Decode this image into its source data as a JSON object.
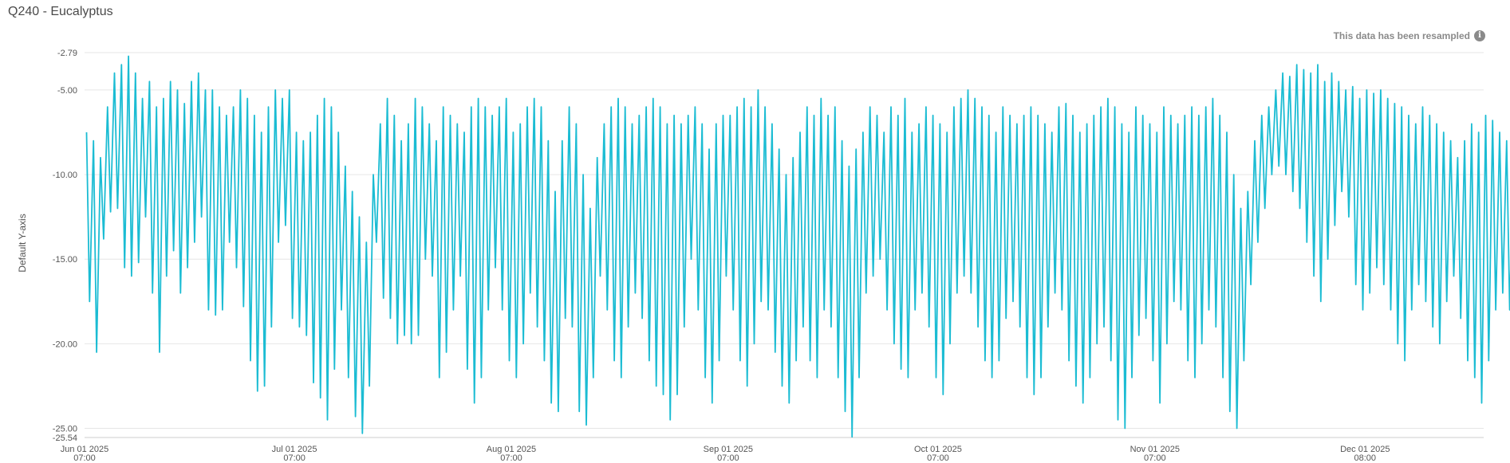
{
  "header": {
    "title": "Q240 - Eucalyptus",
    "notice": "This data has been resampled",
    "notice_icon": "info-icon"
  },
  "colors": {
    "line": "#1bbcd3",
    "grid": "#e6e6e6",
    "axis": "#cccccc"
  },
  "chart_data": {
    "type": "line",
    "title": "Q240 - Eucalyptus",
    "ylabel": "Default Y-axis",
    "xlabel": "",
    "ylim": [
      -25.54,
      -2.79
    ],
    "xlim": [
      "2025-06-01T07:00",
      "2025-12-18T07:00"
    ],
    "y_ticks": [
      "-2.79",
      "-5.00",
      "-10.00",
      "-15.00",
      "-20.00",
      "-25.00",
      "-25.54"
    ],
    "x_ticks": [
      {
        "date": "2025-06-01",
        "label1": "Jun 01 2025",
        "label2": "07:00"
      },
      {
        "date": "2025-07-01",
        "label1": "Jul 01 2025",
        "label2": "07:00"
      },
      {
        "date": "2025-08-01",
        "label1": "Aug 01 2025",
        "label2": "07:00"
      },
      {
        "date": "2025-09-01",
        "label1": "Sep 01 2025",
        "label2": "07:00"
      },
      {
        "date": "2025-10-01",
        "label1": "Oct 01 2025",
        "label2": "07:00"
      },
      {
        "date": "2025-11-01",
        "label1": "Nov 01 2025",
        "label2": "07:00"
      },
      {
        "date": "2025-12-01",
        "label1": "Dec 01 2025",
        "label2": "08:00"
      }
    ],
    "grid": true,
    "legend": "none",
    "series": [
      {
        "daily_min": [
          -17.5,
          -20.5,
          -13.8,
          -12.2,
          -12.0,
          -15.5,
          -16.0,
          -15.2,
          -12.5,
          -17.0,
          -20.5,
          -16.0,
          -14.5,
          -17.0,
          -15.5,
          -14.0,
          -12.5,
          -18.0,
          -18.3,
          -18.0,
          -14.0,
          -15.5,
          -17.8,
          -21.0,
          -22.8,
          -22.5,
          -19.0,
          -14.0,
          -13.0,
          -18.5,
          -19.0,
          -19.5,
          -22.3,
          -23.2,
          -24.5,
          -21.5,
          -18.0,
          -22.0,
          -24.3,
          -25.3,
          -22.5,
          -14.0,
          -17.3,
          -18.5,
          -20.0,
          -19.5,
          -20.0,
          -19.5,
          -15.0,
          -16.0,
          -22.0,
          -20.5,
          -18.0,
          -16.0,
          -21.5,
          -23.5,
          -22.0,
          -18.0,
          -15.5,
          -18.0,
          -21.0,
          -22.0,
          -20.0,
          -17.0,
          -19.0,
          -21.0,
          -23.5,
          -24.0,
          -18.5,
          -19.0,
          -24.0,
          -24.8,
          -22.0,
          -16.0,
          -18.0,
          -21.0,
          -22.0,
          -19.0,
          -17.0,
          -18.5,
          -21.0,
          -22.5,
          -23.0,
          -24.5,
          -23.0,
          -19.0,
          -15.0,
          -18.0,
          -22.0,
          -23.5,
          -21.0,
          -16.0,
          -18.0,
          -21.0,
          -22.5,
          -20.0,
          -17.5,
          -18.0,
          -20.5,
          -22.5,
          -23.5,
          -21.0,
          -19.0,
          -21.0,
          -22.0,
          -18.0,
          -19.0,
          -22.0,
          -24.0,
          -25.5,
          -22.0,
          -17.0,
          -16.0,
          -15.0,
          -18.0,
          -20.0,
          -21.5,
          -22.0,
          -18.0,
          -17.0,
          -19.0,
          -22.0,
          -23.0,
          -20.0,
          -17.0,
          -16.0,
          -17.0,
          -19.0,
          -21.0,
          -22.0,
          -21.0,
          -18.5,
          -17.5,
          -19.0,
          -22.0,
          -23.0,
          -22.0,
          -19.0,
          -17.0,
          -18.0,
          -21.0,
          -22.5,
          -23.5,
          -22.0,
          -20.0,
          -19.0,
          -21.0,
          -24.5,
          -25.0,
          -22.0,
          -19.5,
          -18.5,
          -21.0,
          -23.5,
          -20.0,
          -17.5,
          -18.0,
          -21.0,
          -22.0,
          -20.0,
          -18.0,
          -19.0,
          -22.0,
          -24.0,
          -25.0,
          -21.0,
          -16.5,
          -14.0,
          -12.0,
          -10.0,
          -9.5,
          -10.0,
          -11.0,
          -12.0,
          -14.0,
          -16.0,
          -17.5,
          -15.0,
          -13.0,
          -11.0,
          -12.5,
          -16.5,
          -18.0,
          -17.0,
          -15.5,
          -16.5,
          -18.0,
          -20.0,
          -21.0,
          -18.0,
          -16.5,
          -17.5,
          -19.0,
          -20.0,
          -17.5,
          -16.0,
          -18.5,
          -21.0,
          -22.0,
          -23.5,
          -21.0,
          -18.0,
          -17.0,
          -18.0,
          -19.0,
          -21.8
        ],
        "daily_max": [
          -7.5,
          -8.0,
          -9.0,
          -6.0,
          -4.0,
          -3.5,
          -3.0,
          -4.0,
          -5.5,
          -4.5,
          -6.0,
          -5.5,
          -4.5,
          -5.0,
          -5.8,
          -4.5,
          -4.0,
          -5.0,
          -5.0,
          -6.0,
          -6.5,
          -6.0,
          -5.0,
          -5.5,
          -6.5,
          -7.5,
          -6.0,
          -5.0,
          -5.5,
          -5.0,
          -7.5,
          -8.0,
          -7.5,
          -6.5,
          -5.5,
          -6.0,
          -7.5,
          -9.5,
          -11.0,
          -12.5,
          -14.0,
          -10.0,
          -7.0,
          -5.5,
          -6.5,
          -8.0,
          -7.0,
          -5.5,
          -6.0,
          -7.0,
          -8.0,
          -6.0,
          -6.5,
          -7.0,
          -7.5,
          -6.0,
          -5.5,
          -6.0,
          -6.5,
          -6.0,
          -5.5,
          -7.5,
          -7.0,
          -6.0,
          -5.5,
          -6.0,
          -8.0,
          -11.0,
          -8.0,
          -6.0,
          -7.0,
          -10.0,
          -12.0,
          -9.0,
          -7.0,
          -6.0,
          -5.5,
          -6.0,
          -7.0,
          -6.5,
          -6.0,
          -5.5,
          -6.0,
          -7.0,
          -6.5,
          -7.0,
          -6.5,
          -6.0,
          -7.0,
          -8.5,
          -7.0,
          -6.5,
          -6.5,
          -6.0,
          -5.5,
          -6.0,
          -5.0,
          -6.0,
          -7.0,
          -8.5,
          -10.0,
          -9.0,
          -7.5,
          -6.0,
          -6.5,
          -5.5,
          -6.5,
          -6.0,
          -8.0,
          -9.5,
          -8.5,
          -7.5,
          -6.0,
          -6.5,
          -7.5,
          -6.0,
          -6.5,
          -5.5,
          -7.5,
          -7.0,
          -6.0,
          -6.5,
          -7.0,
          -7.5,
          -6.0,
          -5.5,
          -5.0,
          -5.5,
          -6.0,
          -6.5,
          -7.5,
          -6.0,
          -6.5,
          -7.0,
          -6.5,
          -6.0,
          -6.5,
          -7.0,
          -7.5,
          -6.0,
          -5.8,
          -6.5,
          -7.5,
          -7.0,
          -6.5,
          -6.0,
          -5.5,
          -6.0,
          -7.0,
          -7.5,
          -6.0,
          -6.5,
          -7.0,
          -7.5,
          -6.0,
          -6.5,
          -7.0,
          -6.5,
          -6.0,
          -6.5,
          -6.0,
          -5.5,
          -6.5,
          -7.5,
          -10.0,
          -12.0,
          -11.0,
          -8.0,
          -6.5,
          -6.0,
          -5.0,
          -4.0,
          -4.2,
          -3.5,
          -3.8,
          -4.0,
          -3.5,
          -4.5,
          -4.0,
          -4.5,
          -5.0,
          -4.8,
          -5.5,
          -5.0,
          -5.2,
          -5.0,
          -5.5,
          -5.8,
          -6.0,
          -6.5,
          -7.0,
          -6.0,
          -6.5,
          -7.0,
          -7.5,
          -8.0,
          -9.0,
          -8.0,
          -7.0,
          -7.5,
          -6.5,
          -6.8,
          -7.5,
          -8.0,
          -9.0,
          -8.0,
          -8.5,
          -12.0
        ]
      }
    ]
  }
}
